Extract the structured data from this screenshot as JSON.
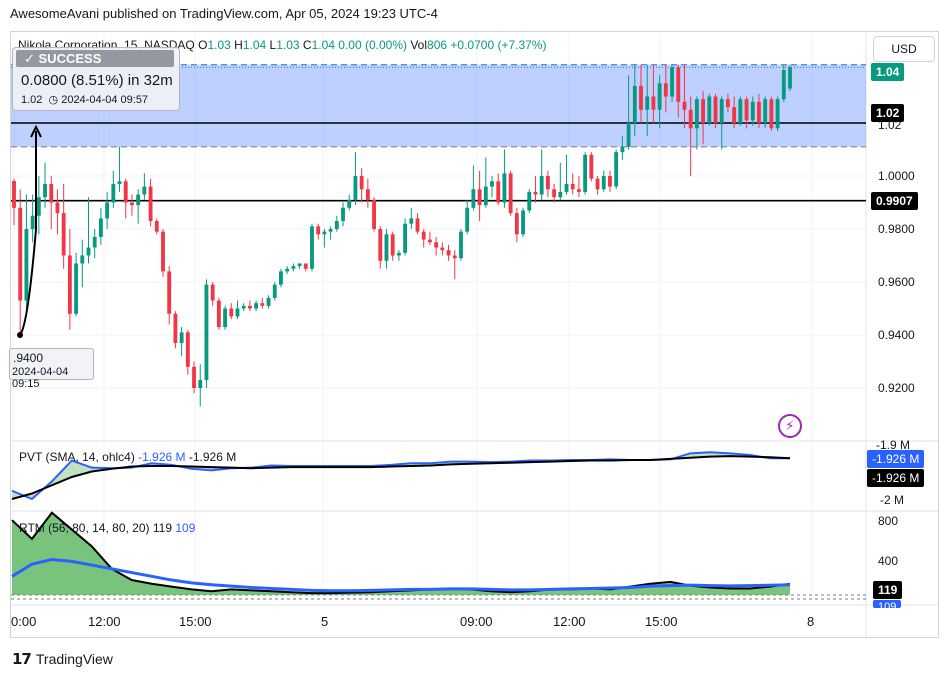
{
  "publisher_line": "AwesomeAvani published on TradingView.com, Apr 05, 2024 19:23 UTC-4",
  "symbol": {
    "name": "Nikola Corporation, 15, NASDAQ",
    "ohlc": [
      {
        "k": "O",
        "v": "1.03"
      },
      {
        "k": "H",
        "v": "1.04"
      },
      {
        "k": "L",
        "v": "1.03"
      },
      {
        "k": "C",
        "v": "1.04"
      }
    ],
    "change": "0.00 (0.00%)",
    "vol_label": "Vol",
    "vol_value": "806",
    "vol_change": "+0.0700 (+7.37%)"
  },
  "currency": "USD",
  "colors": {
    "up": "#089981",
    "down": "#f23645",
    "box": "#2962ff",
    "pvt": "#2962ff",
    "rsi_fill": "#4caf50"
  },
  "tooltip": {
    "status": "SUCCESS",
    "line1": "0.0800 (8.51%) in 32m",
    "price": "1.02",
    "datetime": "2024-04-04  09:57"
  },
  "start_label": {
    "price": ".9400",
    "datetime": "2024-04-04 09:15"
  },
  "price_axis": {
    "ticks": [
      "1.02",
      "1.0000",
      "0.9800",
      "0.9600",
      "0.9400",
      "0.9200"
    ],
    "badges": {
      "last": "1.04",
      "target": "1.02",
      "support": "0.9907"
    }
  },
  "pvt": {
    "legend": "PVT (SMA, 14, ohlc4)",
    "value_blue": "-1.926 M",
    "value_black": "-1.926 M",
    "axis_ticks": [
      "-1.9 M",
      "-2 M"
    ],
    "badge_blue": "-1.926 M",
    "badge_black": "-1.926 M"
  },
  "rtm": {
    "legend": "RTM (56, 80, 14, 80, 20)",
    "value_black": "119",
    "value_blue": "109",
    "axis_ticks": [
      "800",
      "400"
    ],
    "badge": "119",
    "badge_under": "109"
  },
  "time_axis": [
    "0:00",
    "12:00",
    "15:00",
    "5",
    "09:00",
    "12:00",
    "15:00",
    "8"
  ],
  "logo_text": "TradingView",
  "chart_data": {
    "type": "candlestick",
    "title": "Nikola Corporation, 15, NASDAQ",
    "ylim": [
      0.912,
      1.048
    ],
    "hlines": [
      1.02,
      0.9907
    ],
    "rect_range": [
      1.011,
      1.042
    ],
    "candles": [
      [
        0.9981,
        0.999,
        0.9815,
        0.988
      ],
      [
        0.988,
        0.995,
        0.939,
        0.953
      ],
      [
        0.953,
        0.993,
        0.95,
        0.98
      ],
      [
        0.98,
        0.993,
        0.975,
        0.985
      ],
      [
        0.985,
        1.0,
        0.978,
        0.992
      ],
      [
        0.992,
        1.005,
        0.988,
        0.997
      ],
      [
        0.997,
        1.0,
        0.98,
        0.99
      ],
      [
        0.99,
        0.995,
        0.978,
        0.986
      ],
      [
        0.986,
        0.997,
        0.965,
        0.97
      ],
      [
        0.97,
        0.98,
        0.942,
        0.948
      ],
      [
        0.948,
        0.971,
        0.947,
        0.967
      ],
      [
        0.967,
        0.976,
        0.958,
        0.97
      ],
      [
        0.97,
        0.992,
        0.967,
        0.973
      ],
      [
        0.973,
        0.98,
        0.969,
        0.977
      ],
      [
        0.977,
        0.988,
        0.974,
        0.984
      ],
      [
        0.984,
        0.994,
        0.98,
        0.99
      ],
      [
        0.99,
        1.002,
        0.988,
        0.997
      ],
      [
        0.997,
        1.011,
        0.994,
        0.998
      ],
      [
        0.998,
        0.999,
        0.984,
        0.99
      ],
      [
        0.99,
        0.993,
        0.985,
        0.989
      ],
      [
        0.989,
        0.995,
        0.982,
        0.993
      ],
      [
        0.993,
        1.001,
        0.991,
        0.996
      ],
      [
        0.996,
        0.999,
        0.981,
        0.983
      ],
      [
        0.983,
        0.984,
        0.978,
        0.979
      ],
      [
        0.979,
        0.98,
        0.962,
        0.964
      ],
      [
        0.964,
        0.966,
        0.944,
        0.948
      ],
      [
        0.948,
        0.949,
        0.935,
        0.937
      ],
      [
        0.937,
        0.943,
        0.932,
        0.941
      ],
      [
        0.941,
        0.942,
        0.925,
        0.928
      ],
      [
        0.928,
        0.93,
        0.918,
        0.92
      ],
      [
        0.92,
        0.929,
        0.913,
        0.923
      ],
      [
        0.923,
        0.961,
        0.92,
        0.959
      ],
      [
        0.959,
        0.96,
        0.951,
        0.953
      ],
      [
        0.953,
        0.954,
        0.942,
        0.943
      ],
      [
        0.943,
        0.951,
        0.942,
        0.95
      ],
      [
        0.95,
        0.952,
        0.946,
        0.947
      ],
      [
        0.947,
        0.953,
        0.946,
        0.95
      ],
      [
        0.95,
        0.952,
        0.949,
        0.951
      ],
      [
        0.951,
        0.953,
        0.949,
        0.95
      ],
      [
        0.95,
        0.953,
        0.949,
        0.952
      ],
      [
        0.952,
        0.954,
        0.95,
        0.951
      ],
      [
        0.951,
        0.955,
        0.95,
        0.954
      ],
      [
        0.954,
        0.96,
        0.953,
        0.959
      ],
      [
        0.959,
        0.965,
        0.958,
        0.964
      ],
      [
        0.964,
        0.966,
        0.963,
        0.965
      ],
      [
        0.965,
        0.967,
        0.964,
        0.966
      ],
      [
        0.966,
        0.967,
        0.965,
        0.967
      ],
      [
        0.967,
        0.967,
        0.964,
        0.965
      ],
      [
        0.965,
        0.982,
        0.964,
        0.981
      ],
      [
        0.981,
        0.982,
        0.976,
        0.978
      ],
      [
        0.978,
        0.98,
        0.973,
        0.979
      ],
      [
        0.979,
        0.981,
        0.976,
        0.98
      ],
      [
        0.98,
        0.985,
        0.979,
        0.983
      ],
      [
        0.983,
        0.99,
        0.981,
        0.988
      ],
      [
        0.988,
        0.993,
        0.987,
        0.991
      ],
      [
        0.991,
        1.009,
        0.989,
        1.0
      ],
      [
        1.0,
        1.003,
        0.99,
        0.995
      ],
      [
        0.995,
        0.999,
        0.988,
        0.991
      ],
      [
        0.991,
        0.992,
        0.979,
        0.98
      ],
      [
        0.98,
        0.981,
        0.965,
        0.968
      ],
      [
        0.968,
        0.98,
        0.965,
        0.978
      ],
      [
        0.978,
        0.979,
        0.968,
        0.97
      ],
      [
        0.97,
        0.972,
        0.968,
        0.971
      ],
      [
        0.971,
        0.984,
        0.97,
        0.982
      ],
      [
        0.982,
        0.988,
        0.98,
        0.984
      ],
      [
        0.984,
        0.986,
        0.978,
        0.979
      ],
      [
        0.979,
        0.98,
        0.973,
        0.976
      ],
      [
        0.976,
        0.979,
        0.974,
        0.975
      ],
      [
        0.975,
        0.977,
        0.97,
        0.973
      ],
      [
        0.973,
        0.975,
        0.97,
        0.972
      ],
      [
        0.972,
        0.974,
        0.968,
        0.97
      ],
      [
        0.97,
        0.972,
        0.961,
        0.969
      ],
      [
        0.969,
        0.98,
        0.968,
        0.979
      ],
      [
        0.979,
        0.991,
        0.978,
        0.988
      ],
      [
        0.988,
        1.004,
        0.987,
        0.995
      ],
      [
        0.995,
        1.002,
        0.983,
        0.989
      ],
      [
        0.989,
        1.007,
        0.988,
        0.996
      ],
      [
        0.996,
        1.0,
        0.992,
        0.998
      ],
      [
        0.998,
        1.001,
        0.989,
        0.99
      ],
      [
        0.99,
        1.01,
        0.988,
        1.001
      ],
      [
        1.001,
        1.002,
        0.985,
        0.986
      ],
      [
        0.986,
        0.988,
        0.975,
        0.978
      ],
      [
        0.978,
        0.988,
        0.977,
        0.987
      ],
      [
        0.987,
        0.995,
        0.986,
        0.994
      ],
      [
        0.994,
        1.0,
        0.99,
        0.993
      ],
      [
        0.993,
        1.01,
        0.991,
        1.0
      ],
      [
        1.0,
        1.002,
        0.992,
        0.995
      ],
      [
        0.995,
        0.997,
        0.99,
        0.992
      ],
      [
        0.992,
        1.005,
        0.991,
        0.994
      ],
      [
        0.994,
        1.008,
        0.993,
        0.997
      ],
      [
        0.997,
        1.001,
        0.993,
        0.995
      ],
      [
        0.995,
        1.0,
        0.992,
        0.994
      ],
      [
        0.994,
        1.009,
        0.993,
        1.008
      ],
      [
        1.008,
        1.009,
        0.998,
        0.999
      ],
      [
        0.999,
        1.0,
        0.993,
        0.995
      ],
      [
        0.995,
        1.002,
        0.994,
        1.0
      ],
      [
        1.0,
        1.002,
        0.994,
        0.996
      ],
      [
        0.996,
        1.01,
        0.995,
        1.009
      ],
      [
        1.009,
        1.015,
        1.006,
        1.011
      ],
      [
        1.011,
        1.038,
        1.01,
        1.02
      ],
      [
        1.02,
        1.042,
        1.015,
        1.034
      ],
      [
        1.034,
        1.042,
        1.02,
        1.025
      ],
      [
        1.025,
        1.042,
        1.015,
        1.03
      ],
      [
        1.03,
        1.042,
        1.02,
        1.025
      ],
      [
        1.025,
        1.038,
        1.018,
        1.035
      ],
      [
        1.035,
        1.042,
        1.024,
        1.03
      ],
      [
        1.03,
        1.042,
        1.028,
        1.041
      ],
      [
        1.041,
        1.042,
        1.022,
        1.028
      ],
      [
        1.028,
        1.042,
        1.018,
        1.025
      ],
      [
        1.025,
        1.03,
        1.0,
        1.018
      ],
      [
        1.018,
        1.03,
        1.01,
        1.029
      ],
      [
        1.029,
        1.032,
        1.012,
        1.02
      ],
      [
        1.02,
        1.031,
        1.019,
        1.03
      ],
      [
        1.03,
        1.031,
        1.018,
        1.02
      ],
      [
        1.02,
        1.03,
        1.01,
        1.029
      ],
      [
        1.029,
        1.031,
        1.024,
        1.026
      ],
      [
        1.026,
        1.03,
        1.018,
        1.02
      ],
      [
        1.02,
        1.03,
        1.019,
        1.029
      ],
      [
        1.029,
        1.03,
        1.018,
        1.021
      ],
      [
        1.021,
        1.03,
        1.019,
        1.028
      ],
      [
        1.028,
        1.031,
        1.018,
        1.02
      ],
      [
        1.02,
        1.03,
        1.018,
        1.029
      ],
      [
        1.029,
        1.03,
        1.017,
        1.018
      ],
      [
        1.018,
        1.03,
        1.017,
        1.029
      ],
      [
        1.029,
        1.042,
        1.028,
        1.04
      ],
      [
        1.033,
        1.042,
        1.032,
        1.041
      ]
    ],
    "pvt_blue": [
      -1.985,
      -2.0,
      -1.968,
      -1.93,
      -1.943,
      -1.944,
      -1.943,
      -1.935,
      -1.938,
      -1.945,
      -1.948,
      -1.944,
      -1.943,
      -1.939,
      -1.94,
      -1.94,
      -1.94,
      -1.94,
      -1.94,
      -1.938,
      -1.935,
      -1.935,
      -1.932,
      -1.932,
      -1.933,
      -1.932,
      -1.93,
      -1.93,
      -1.929,
      -1.929,
      -1.928,
      -1.929,
      -1.929,
      -1.928,
      -1.917,
      -1.915,
      -1.917,
      -1.92,
      -1.926,
      -1.926
    ],
    "pvt_black": [
      -2.0,
      -1.99,
      -1.975,
      -1.96,
      -1.95,
      -1.945,
      -1.941,
      -1.94,
      -1.94,
      -1.941,
      -1.942,
      -1.943,
      -1.944,
      -1.943,
      -1.942,
      -1.942,
      -1.942,
      -1.942,
      -1.942,
      -1.941,
      -1.94,
      -1.939,
      -1.937,
      -1.936,
      -1.935,
      -1.934,
      -1.933,
      -1.932,
      -1.931,
      -1.93,
      -1.93,
      -1.929,
      -1.929,
      -1.927,
      -1.925,
      -1.923,
      -1.922,
      -1.923,
      -1.924,
      -1.926
    ],
    "rtm_black": [
      800,
      600,
      880,
      700,
      520,
      280,
      160,
      120,
      90,
      60,
      40,
      60,
      50,
      40,
      30,
      20,
      20,
      25,
      30,
      40,
      50,
      60,
      70,
      60,
      40,
      30,
      40,
      60,
      60,
      70,
      60,
      90,
      120,
      140,
      100,
      80,
      70,
      70,
      90,
      119
    ],
    "rtm_blue": [
      200,
      330,
      380,
      360,
      320,
      280,
      240,
      200,
      160,
      130,
      110,
      95,
      80,
      70,
      60,
      50,
      45,
      45,
      50,
      55,
      60,
      60,
      65,
      65,
      60,
      55,
      55,
      60,
      65,
      70,
      75,
      80,
      95,
      100,
      105,
      100,
      98,
      100,
      104,
      109
    ]
  }
}
